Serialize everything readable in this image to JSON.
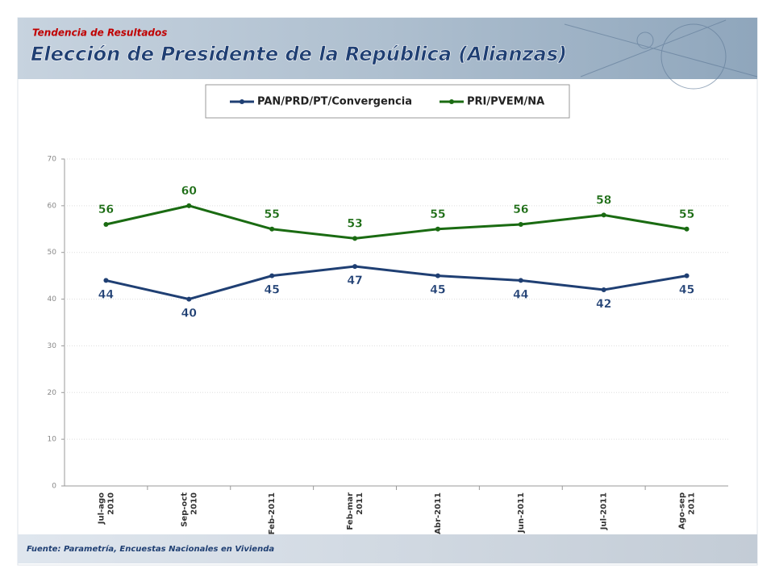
{
  "chart_data": {
    "type": "line",
    "subtitle": "Tendencia de Resultados",
    "title": "Elección de Presidente de la República (Alianzas)",
    "source": "Fuente: Parametría, Encuestas Nacionales en Vivienda",
    "categories": [
      "Jul-ago 2010",
      "Sep-oct 2010",
      "Feb-2011",
      "Feb-mar 2011",
      "Abr-2011",
      "Jun-2011",
      "Jul-2011",
      "Ago-sep 2011"
    ],
    "series": [
      {
        "name": "PAN/PRD/PT/Convergencia",
        "color": "#1f3f73",
        "values": [
          44,
          40,
          45,
          47,
          45,
          44,
          42,
          45
        ]
      },
      {
        "name": "PRI/PVEM/NA",
        "color": "#1a6b12",
        "values": [
          56,
          60,
          55,
          53,
          55,
          56,
          58,
          55
        ]
      }
    ],
    "ylim": [
      0,
      70
    ],
    "yticks": [
      0,
      10,
      20,
      30,
      40,
      50,
      60,
      70
    ],
    "grid": true,
    "legend": "top"
  }
}
